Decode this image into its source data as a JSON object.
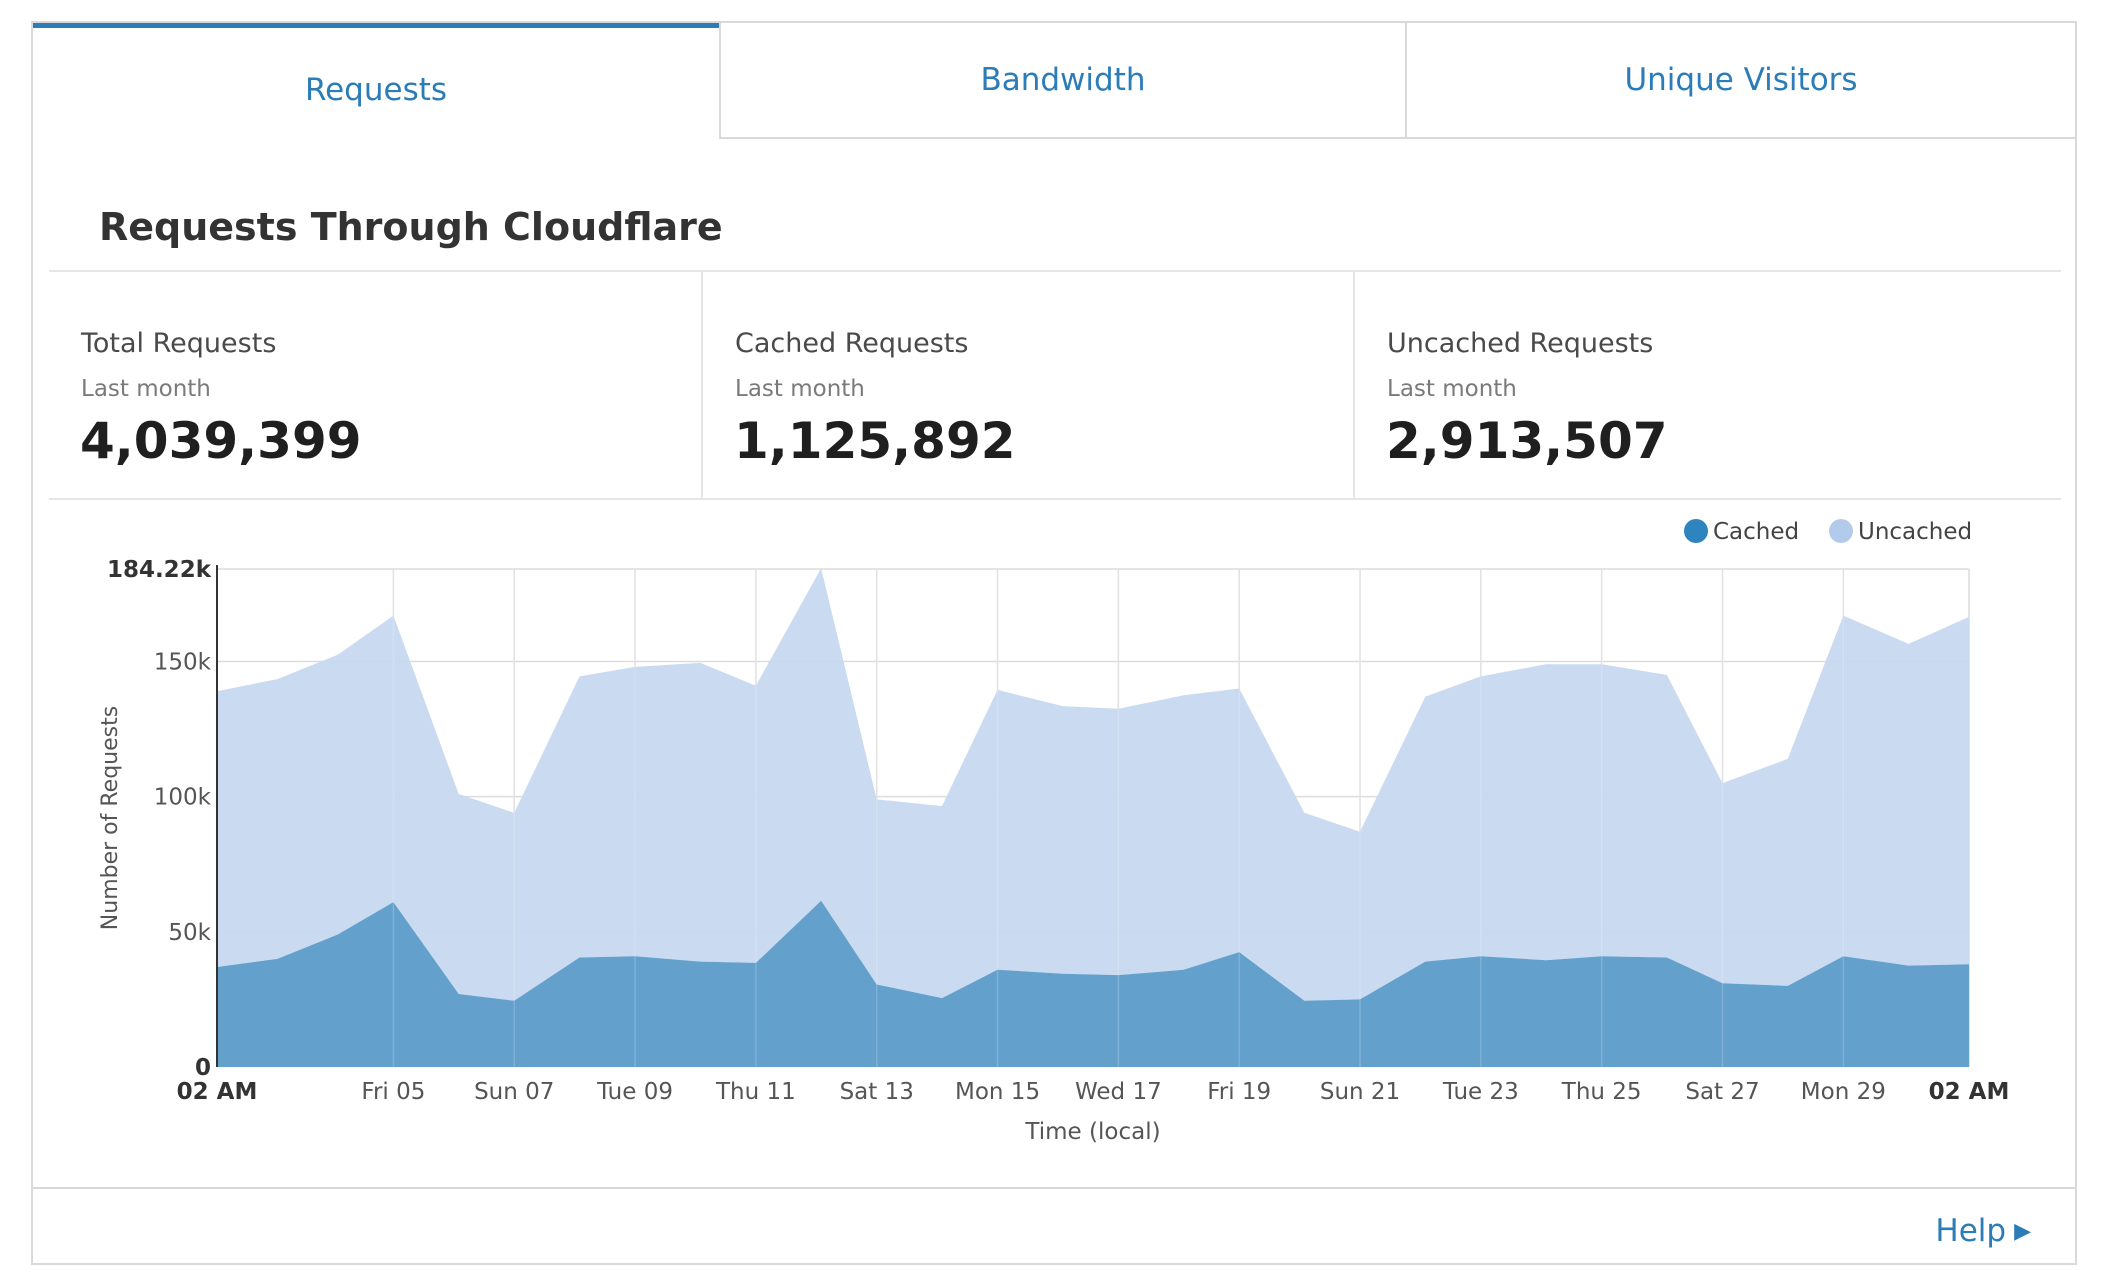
{
  "tabs": [
    {
      "label": "Requests",
      "active": true
    },
    {
      "label": "Bandwidth",
      "active": false
    },
    {
      "label": "Unique Visitors",
      "active": false
    }
  ],
  "section_title": "Requests Through Cloudflare",
  "stats": [
    {
      "label": "Total Requests",
      "period": "Last month",
      "value": "4,039,399"
    },
    {
      "label": "Cached Requests",
      "period": "Last month",
      "value": "1,125,892"
    },
    {
      "label": "Uncached Requests",
      "period": "Last month",
      "value": "2,913,507"
    }
  ],
  "help": {
    "label": "Help",
    "icon": "caret-right-icon"
  },
  "colors": {
    "accent": "#2c7cb8",
    "cached": "#2e84be",
    "uncached": "#b3cbeb",
    "cached_fill": "#64a0cc",
    "uncached_fill": "#c6d8f0"
  },
  "chart_data": {
    "type": "area",
    "stacked": true,
    "title": "",
    "xlabel": "Time (local)",
    "ylabel": "Number of Requests",
    "ylim": [
      0,
      184220
    ],
    "y_ticks": [
      0,
      50000,
      100000,
      150000,
      184220
    ],
    "y_tick_labels": [
      "0",
      "50k",
      "100k",
      "150k",
      "184.22k"
    ],
    "grid": true,
    "legend_position": "top-right",
    "x_tick_labels": [
      "02 AM",
      "Fri 05",
      "Sun 07",
      "Tue 09",
      "Thu 11",
      "Sat 13",
      "Mon 15",
      "Wed 17",
      "Fri 19",
      "Sun 21",
      "Tue 23",
      "Thu 25",
      "Sat 27",
      "Mon 29",
      "02 AM"
    ],
    "x_tick_days": [
      0,
      2.92,
      4.92,
      6.92,
      8.92,
      10.92,
      12.92,
      14.92,
      16.92,
      18.92,
      20.92,
      22.92,
      24.92,
      26.92,
      29
    ],
    "x_days": [
      0,
      1,
      2,
      2.92,
      4,
      4.92,
      6,
      6.92,
      8,
      8.92,
      10,
      10.92,
      12,
      12.92,
      14,
      14.92,
      16,
      16.92,
      18,
      18.92,
      20,
      20.92,
      22,
      22.92,
      24,
      24.92,
      26,
      26.92,
      28,
      29
    ],
    "series": [
      {
        "name": "Cached",
        "values": [
          37000,
          40000,
          49000,
          61000,
          27000,
          24500,
          40500,
          41000,
          39000,
          38500,
          61500,
          30500,
          25500,
          36000,
          34500,
          34000,
          36000,
          42500,
          24500,
          25000,
          39000,
          41000,
          39500,
          41000,
          40500,
          31000,
          30000,
          41000,
          37500,
          38000
        ]
      },
      {
        "name": "Uncached",
        "values": [
          102000,
          103500,
          103500,
          106000,
          74000,
          69500,
          104000,
          107000,
          110500,
          102500,
          123000,
          68500,
          71000,
          103500,
          99000,
          98500,
          101500,
          97500,
          69500,
          62000,
          98000,
          103500,
          109500,
          108000,
          104500,
          74000,
          84000,
          126000,
          119000,
          128500
        ]
      }
    ]
  }
}
